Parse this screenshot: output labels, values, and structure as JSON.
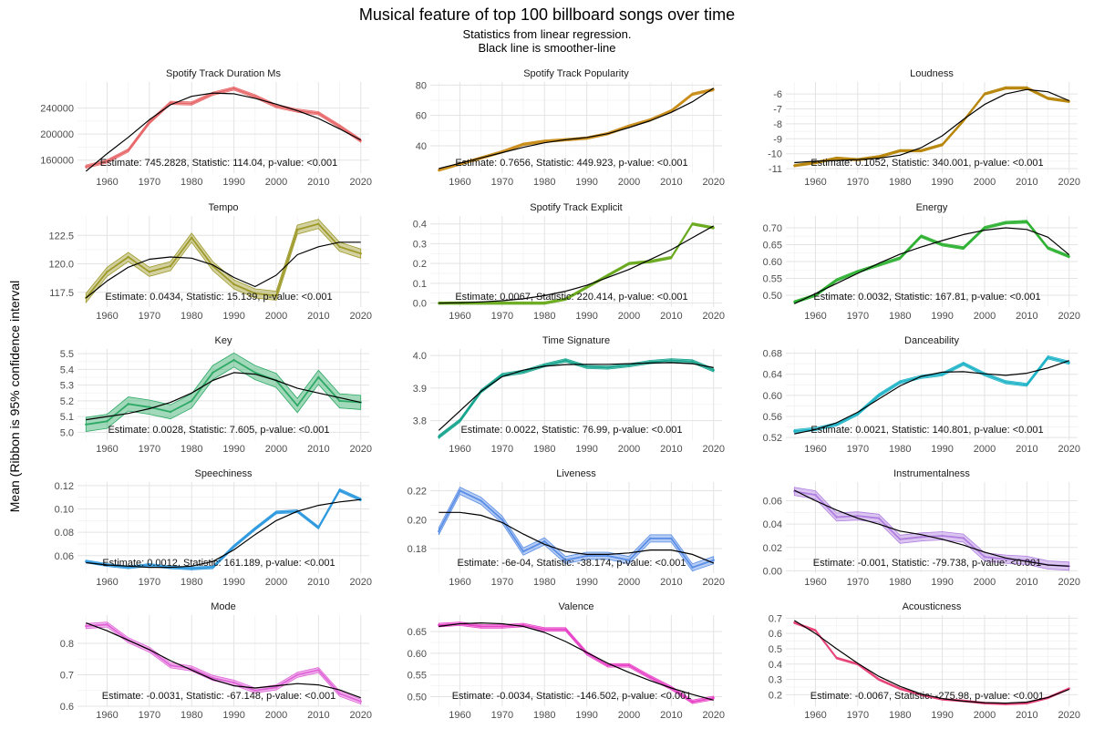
{
  "title": "Musical feature of top 100 billboard songs over time",
  "subtitle_lines": [
    "Statistics from linear regression.",
    "Black line is smoother-line"
  ],
  "ylabel": "Mean (Ribbon is 95% confidence interval",
  "chart_data": {
    "type": "line",
    "layout": "facet-grid",
    "grid": true,
    "x_ticks": [
      1960,
      1970,
      1980,
      1990,
      2000,
      2010,
      2020
    ],
    "xlim": [
      1953,
      2022
    ],
    "panels": [
      {
        "title": "Spotify Track Duration Ms",
        "color": "#e8686a",
        "ylim": [
          140000,
          280000
        ],
        "y_ticks": [
          160000,
          200000,
          240000
        ],
        "y_tick_labels": [
          "160000",
          "200000",
          "240000"
        ],
        "x": [
          1955,
          1960,
          1965,
          1970,
          1975,
          1980,
          1985,
          1990,
          1995,
          2000,
          2005,
          2010,
          2015,
          2020
        ],
        "values": [
          150000,
          158000,
          175000,
          218000,
          248000,
          247000,
          262000,
          270000,
          258000,
          243000,
          236000,
          232000,
          212000,
          190000
        ],
        "ribbon": 2500,
        "smooth": [
          143000,
          170000,
          195000,
          222000,
          245000,
          258000,
          263000,
          262000,
          255000,
          246000,
          236000,
          224000,
          208000,
          191000
        ],
        "annotation": "Estimate: 745.2828, Statistic: 114.04, p-value: <0.001"
      },
      {
        "title": "Spotify Track Popularity",
        "color": "#c98d1a",
        "ylim": [
          22,
          82
        ],
        "y_ticks": [
          40,
          60,
          80
        ],
        "y_tick_labels": [
          "40",
          "60",
          "80"
        ],
        "x": [
          1955,
          1960,
          1965,
          1970,
          1975,
          1980,
          1985,
          1990,
          1995,
          2000,
          2005,
          2010,
          2015,
          2020
        ],
        "values": [
          24,
          28,
          32,
          36,
          41,
          43,
          44,
          45,
          48,
          53,
          57,
          63,
          74,
          77
        ],
        "ribbon": 0.8,
        "smooth": [
          25,
          28.5,
          32,
          35.5,
          39,
          42,
          44,
          45.5,
          48,
          52,
          56.5,
          62,
          69,
          78
        ],
        "annotation": "Estimate: 0.7656, Statistic: 449.923, p-value: <0.001"
      },
      {
        "title": "Loudness",
        "color": "#b8860b",
        "ylim": [
          -11.3,
          -5.2
        ],
        "y_ticks": [
          -11,
          -10,
          -9,
          -8,
          -7,
          -6
        ],
        "y_tick_labels": [
          "-11",
          "-10",
          "-9",
          "-8",
          "-7",
          "-6"
        ],
        "x": [
          1955,
          1960,
          1965,
          1970,
          1975,
          1980,
          1985,
          1990,
          1995,
          2000,
          2005,
          2010,
          2015,
          2020
        ],
        "values": [
          -10.8,
          -10.6,
          -10.3,
          -10.4,
          -10.2,
          -9.8,
          -9.8,
          -9.4,
          -7.8,
          -6.0,
          -5.6,
          -5.6,
          -6.3,
          -6.5
        ],
        "ribbon": 0.08,
        "smooth": [
          -10.6,
          -10.5,
          -10.45,
          -10.4,
          -10.3,
          -10.1,
          -9.6,
          -8.8,
          -7.7,
          -6.7,
          -6.0,
          -5.7,
          -5.85,
          -6.45
        ],
        "annotation": "Estimate: 0.1052, Statistic: 340.001, p-value: <0.001"
      },
      {
        "title": "Tempo",
        "color": "#9e9a2a",
        "ylim": [
          116.2,
          124.2
        ],
        "y_ticks": [
          117.5,
          120.0,
          122.5
        ],
        "y_tick_labels": [
          "117.5",
          "120.0",
          "122.5"
        ],
        "x": [
          1955,
          1960,
          1965,
          1970,
          1975,
          1980,
          1985,
          1990,
          1995,
          2000,
          2005,
          2010,
          2015,
          2020
        ],
        "values": [
          117.0,
          119.3,
          120.6,
          119.3,
          119.8,
          122.3,
          119.8,
          118.2,
          117.4,
          117.2,
          123.0,
          123.5,
          121.5,
          120.9
        ],
        "ribbon": 0.4,
        "smooth": [
          117.0,
          118.5,
          119.7,
          120.4,
          120.6,
          120.5,
          119.9,
          118.8,
          118.0,
          119.0,
          120.8,
          121.5,
          121.9,
          121.9
        ],
        "annotation": "Estimate: 0.0434, Statistic: 15.139, p-value: <0.001"
      },
      {
        "title": "Spotify Track Explicit",
        "color": "#6aaa1e",
        "ylim": [
          -0.02,
          0.44
        ],
        "y_ticks": [
          0.0,
          0.1,
          0.2,
          0.3,
          0.4
        ],
        "y_tick_labels": [
          "0.0",
          "0.1",
          "0.2",
          "0.3",
          "0.4"
        ],
        "x": [
          1955,
          1960,
          1965,
          1970,
          1975,
          1980,
          1985,
          1990,
          1995,
          2000,
          2005,
          2010,
          2015,
          2020
        ],
        "values": [
          0.0,
          0.0,
          0.0,
          0.0,
          0.0,
          0.0,
          0.02,
          0.08,
          0.14,
          0.2,
          0.21,
          0.23,
          0.4,
          0.38
        ],
        "ribbon": 0.006,
        "smooth": [
          0.0,
          0.002,
          0.006,
          0.012,
          0.022,
          0.038,
          0.06,
          0.09,
          0.13,
          0.17,
          0.22,
          0.27,
          0.33,
          0.39
        ],
        "annotation": "Estimate: 0.0067, Statistic: 220.414, p-value: <0.001"
      },
      {
        "title": "Energy",
        "color": "#2fb233",
        "ylim": [
          0.465,
          0.735
        ],
        "y_ticks": [
          0.5,
          0.55,
          0.6,
          0.65,
          0.7
        ],
        "y_tick_labels": [
          "0.50",
          "0.55",
          "0.60",
          "0.65",
          "0.70"
        ],
        "x": [
          1955,
          1960,
          1965,
          1970,
          1975,
          1980,
          1985,
          1990,
          1995,
          2000,
          2005,
          2010,
          2015,
          2020
        ],
        "values": [
          0.48,
          0.5,
          0.545,
          0.57,
          0.59,
          0.61,
          0.675,
          0.65,
          0.64,
          0.7,
          0.715,
          0.718,
          0.64,
          0.615
        ],
        "ribbon": 0.004,
        "smooth": [
          0.475,
          0.505,
          0.535,
          0.565,
          0.595,
          0.622,
          0.643,
          0.662,
          0.68,
          0.693,
          0.7,
          0.695,
          0.672,
          0.62
        ],
        "annotation": "Estimate: 0.0032, Statistic: 167.81, p-value: <0.001"
      },
      {
        "title": "Key",
        "color": "#2eaa66",
        "ylim": [
          4.95,
          5.53
        ],
        "y_ticks": [
          5.0,
          5.1,
          5.2,
          5.3,
          5.4,
          5.5
        ],
        "y_tick_labels": [
          "5.0",
          "5.1",
          "5.2",
          "5.3",
          "5.4",
          "5.5"
        ],
        "x": [
          1955,
          1960,
          1965,
          1970,
          1975,
          1980,
          1985,
          1990,
          1995,
          2000,
          2005,
          2010,
          2015,
          2020
        ],
        "values": [
          5.05,
          5.07,
          5.18,
          5.16,
          5.13,
          5.2,
          5.38,
          5.46,
          5.38,
          5.33,
          5.17,
          5.35,
          5.2,
          5.19
        ],
        "ribbon": 0.045,
        "smooth": [
          5.08,
          5.1,
          5.12,
          5.15,
          5.19,
          5.25,
          5.33,
          5.38,
          5.37,
          5.33,
          5.28,
          5.25,
          5.22,
          5.19
        ],
        "annotation": "Estimate: 0.0028, Statistic: 7.605, p-value: <0.001"
      },
      {
        "title": "Time Signature",
        "color": "#18a58f",
        "ylim": [
          3.74,
          4.02
        ],
        "y_ticks": [
          3.8,
          3.9,
          4.0
        ],
        "y_tick_labels": [
          "3.8",
          "3.9",
          "4.0"
        ],
        "x": [
          1955,
          1960,
          1965,
          1970,
          1975,
          1980,
          1985,
          1990,
          1995,
          2000,
          2005,
          2010,
          2015,
          2020
        ],
        "values": [
          3.75,
          3.8,
          3.89,
          3.94,
          3.95,
          3.97,
          3.985,
          3.965,
          3.963,
          3.97,
          3.98,
          3.985,
          3.982,
          3.955
        ],
        "ribbon": 0.005,
        "smooth": [
          3.77,
          3.83,
          3.89,
          3.935,
          3.955,
          3.967,
          3.972,
          3.973,
          3.973,
          3.975,
          3.977,
          3.978,
          3.975,
          3.963
        ],
        "annotation": "Estimate: 0.0022, Statistic: 76.99, p-value: <0.001"
      },
      {
        "title": "Danceability",
        "color": "#1fb4c8",
        "ylim": [
          0.515,
          0.688
        ],
        "y_ticks": [
          0.52,
          0.56,
          0.6,
          0.64,
          0.68
        ],
        "y_tick_labels": [
          "0.52",
          "0.56",
          "0.60",
          "0.64",
          "0.68"
        ],
        "x": [
          1955,
          1960,
          1965,
          1970,
          1975,
          1980,
          1985,
          1990,
          1995,
          2000,
          2005,
          2010,
          2015,
          2020
        ],
        "values": [
          0.532,
          0.536,
          0.545,
          0.565,
          0.6,
          0.625,
          0.635,
          0.64,
          0.66,
          0.64,
          0.625,
          0.62,
          0.672,
          0.662
        ],
        "ribbon": 0.003,
        "smooth": [
          0.527,
          0.535,
          0.548,
          0.568,
          0.593,
          0.618,
          0.636,
          0.644,
          0.645,
          0.641,
          0.638,
          0.642,
          0.652,
          0.666
        ],
        "annotation": "Estimate: 0.0021, Statistic: 140.801, p-value: <0.001"
      },
      {
        "title": "Speechiness",
        "color": "#2f9adf",
        "ylim": [
          0.045,
          0.123
        ],
        "y_ticks": [
          0.06,
          0.08,
          0.1,
          0.12
        ],
        "y_tick_labels": [
          "0.06",
          "0.08",
          "0.10",
          "0.12"
        ],
        "x": [
          1955,
          1960,
          1965,
          1970,
          1975,
          1980,
          1985,
          1990,
          1995,
          2000,
          2005,
          2010,
          2015,
          2020
        ],
        "values": [
          0.055,
          0.052,
          0.05,
          0.052,
          0.05,
          0.049,
          0.05,
          0.068,
          0.083,
          0.097,
          0.098,
          0.084,
          0.116,
          0.108
        ],
        "ribbon": 0.0012,
        "smooth": [
          0.054,
          0.052,
          0.051,
          0.05,
          0.05,
          0.051,
          0.055,
          0.065,
          0.078,
          0.09,
          0.098,
          0.103,
          0.106,
          0.108
        ],
        "annotation": "Estimate: 0.0012, Statistic: 161.189, p-value: <0.001"
      },
      {
        "title": "Liveness",
        "color": "#5a8ee6",
        "ylim": [
          0.163,
          0.226
        ],
        "y_ticks": [
          0.18,
          0.2,
          0.22
        ],
        "y_tick_labels": [
          "0.18",
          "0.20",
          "0.22"
        ],
        "x": [
          1955,
          1960,
          1965,
          1970,
          1975,
          1980,
          1985,
          1990,
          1995,
          2000,
          2005,
          2010,
          2015,
          2020
        ],
        "values": [
          0.192,
          0.22,
          0.213,
          0.2,
          0.178,
          0.185,
          0.172,
          0.175,
          0.175,
          0.172,
          0.187,
          0.187,
          0.167,
          0.172
        ],
        "ribbon": 0.0025,
        "smooth": [
          0.205,
          0.205,
          0.203,
          0.198,
          0.19,
          0.183,
          0.178,
          0.176,
          0.176,
          0.177,
          0.179,
          0.179,
          0.176,
          0.17
        ],
        "annotation": "Estimate: -6e-04, Statistic: -38.174, p-value: <0.001"
      },
      {
        "title": "Instrumentalness",
        "color": "#b07fe0",
        "ylim": [
          -0.002,
          0.076
        ],
        "y_ticks": [
          0.0,
          0.02,
          0.04,
          0.06
        ],
        "y_tick_labels": [
          "0.00",
          "0.02",
          "0.04",
          "0.06"
        ],
        "x": [
          1955,
          1960,
          1965,
          1970,
          1975,
          1980,
          1985,
          1990,
          1995,
          2000,
          2005,
          2010,
          2015,
          2020
        ],
        "values": [
          0.068,
          0.065,
          0.046,
          0.047,
          0.045,
          0.027,
          0.029,
          0.03,
          0.028,
          0.012,
          0.01,
          0.009,
          0.005,
          0.004
        ],
        "ribbon": 0.0035,
        "smooth": [
          0.069,
          0.06,
          0.052,
          0.045,
          0.04,
          0.034,
          0.031,
          0.027,
          0.022,
          0.016,
          0.011,
          0.008,
          0.005,
          0.004
        ],
        "annotation": "Estimate: -0.001, Statistic: -79.738, p-value: <0.001"
      },
      {
        "title": "Mode",
        "color": "#e063d8",
        "ylim": [
          0.6,
          0.89
        ],
        "y_ticks": [
          0.6,
          0.7,
          0.8
        ],
        "y_tick_labels": [
          "0.6",
          "0.7",
          "0.8"
        ],
        "x": [
          1955,
          1960,
          1965,
          1970,
          1975,
          1980,
          1985,
          1990,
          1995,
          2000,
          2005,
          2010,
          2015,
          2020
        ],
        "values": [
          0.855,
          0.86,
          0.81,
          0.78,
          0.73,
          0.72,
          0.69,
          0.675,
          0.65,
          0.66,
          0.7,
          0.715,
          0.64,
          0.615
        ],
        "ribbon": 0.008,
        "smooth": [
          0.865,
          0.84,
          0.81,
          0.78,
          0.745,
          0.715,
          0.685,
          0.665,
          0.658,
          0.665,
          0.672,
          0.668,
          0.652,
          0.627
        ],
        "annotation": "Estimate: -0.0031, Statistic: -67.148, p-value: <0.001"
      },
      {
        "title": "Valence",
        "color": "#e844c8",
        "ylim": [
          0.478,
          0.688
        ],
        "y_ticks": [
          0.5,
          0.55,
          0.6,
          0.65
        ],
        "y_tick_labels": [
          "0.50",
          "0.55",
          "0.60",
          "0.65"
        ],
        "x": [
          1955,
          1960,
          1965,
          1970,
          1975,
          1980,
          1985,
          1990,
          1995,
          2000,
          2005,
          2010,
          2015,
          2020
        ],
        "values": [
          0.665,
          0.668,
          0.662,
          0.662,
          0.665,
          0.655,
          0.655,
          0.6,
          0.572,
          0.572,
          0.545,
          0.52,
          0.488,
          0.497
        ],
        "ribbon": 0.004,
        "smooth": [
          0.662,
          0.668,
          0.67,
          0.668,
          0.662,
          0.648,
          0.627,
          0.602,
          0.577,
          0.556,
          0.537,
          0.52,
          0.505,
          0.492
        ],
        "annotation": "Estimate: -0.0034, Statistic: -146.502, p-value: <0.001"
      },
      {
        "title": "Acousticness",
        "color": "#e8457a",
        "ylim": [
          0.125,
          0.72
        ],
        "y_ticks": [
          0.2,
          0.3,
          0.4,
          0.5,
          0.6,
          0.7
        ],
        "y_tick_labels": [
          "0.2",
          "0.3",
          "0.4",
          "0.5",
          "0.6",
          "0.7"
        ],
        "x": [
          1955,
          1960,
          1965,
          1970,
          1975,
          1980,
          1985,
          1990,
          1995,
          2000,
          2005,
          2010,
          2015,
          2020
        ],
        "values": [
          0.67,
          0.62,
          0.44,
          0.4,
          0.3,
          0.24,
          0.2,
          0.17,
          0.16,
          0.145,
          0.14,
          0.145,
          0.18,
          0.24
        ],
        "ribbon": 0.006,
        "smooth": [
          0.685,
          0.6,
          0.5,
          0.405,
          0.32,
          0.255,
          0.205,
          0.175,
          0.158,
          0.148,
          0.145,
          0.152,
          0.182,
          0.235
        ],
        "annotation": "Estimate: -0.0067, Statistic: -275.98, p-value: <0.001"
      }
    ]
  }
}
